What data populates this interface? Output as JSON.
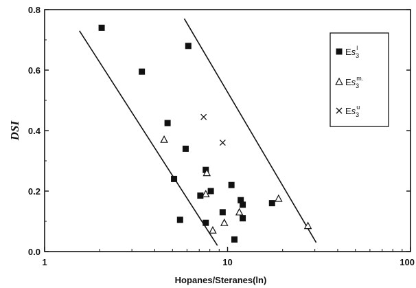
{
  "chart_data": {
    "type": "scatter",
    "xlabel": "Hopanes/Steranes(ln)",
    "ylabel": "DSI",
    "x_scale": "log",
    "xlim": [
      1,
      100
    ],
    "ylim": [
      0,
      0.8
    ],
    "x_ticks": [
      "1",
      "10",
      "100"
    ],
    "y_ticks": [
      "0.0",
      "0.2",
      "0.4",
      "0.6",
      "0.8"
    ],
    "legend_position": "top-right",
    "series": [
      {
        "name": "Es3 l",
        "marker": "filled-square",
        "points": [
          [
            2.05,
            0.74
          ],
          [
            3.4,
            0.595
          ],
          [
            6.1,
            0.68
          ],
          [
            4.7,
            0.425
          ],
          [
            5.9,
            0.34
          ],
          [
            5.1,
            0.24
          ],
          [
            7.6,
            0.27
          ],
          [
            7.1,
            0.185
          ],
          [
            8.1,
            0.2
          ],
          [
            10.5,
            0.22
          ],
          [
            9.4,
            0.13
          ],
          [
            11.8,
            0.17
          ],
          [
            12.1,
            0.155
          ],
          [
            12.1,
            0.11
          ],
          [
            5.5,
            0.105
          ],
          [
            7.6,
            0.095
          ],
          [
            10.9,
            0.04
          ],
          [
            17.5,
            0.16
          ]
        ]
      },
      {
        "name": "Es3 m",
        "marker": "open-triangle",
        "points": [
          [
            4.5,
            0.37
          ],
          [
            7.7,
            0.26
          ],
          [
            7.6,
            0.19
          ],
          [
            8.3,
            0.07
          ],
          [
            9.6,
            0.095
          ],
          [
            11.6,
            0.13
          ],
          [
            19.0,
            0.175
          ],
          [
            27.5,
            0.085
          ]
        ]
      },
      {
        "name": "Es3 u",
        "marker": "cross",
        "points": [
          [
            7.4,
            0.445
          ],
          [
            9.4,
            0.36
          ]
        ]
      }
    ],
    "lines": [
      {
        "x": [
          1.55,
          8.8
        ],
        "y": [
          0.73,
          0.02
        ]
      },
      {
        "x": [
          5.8,
          30.5
        ],
        "y": [
          0.77,
          0.03
        ]
      }
    ]
  }
}
